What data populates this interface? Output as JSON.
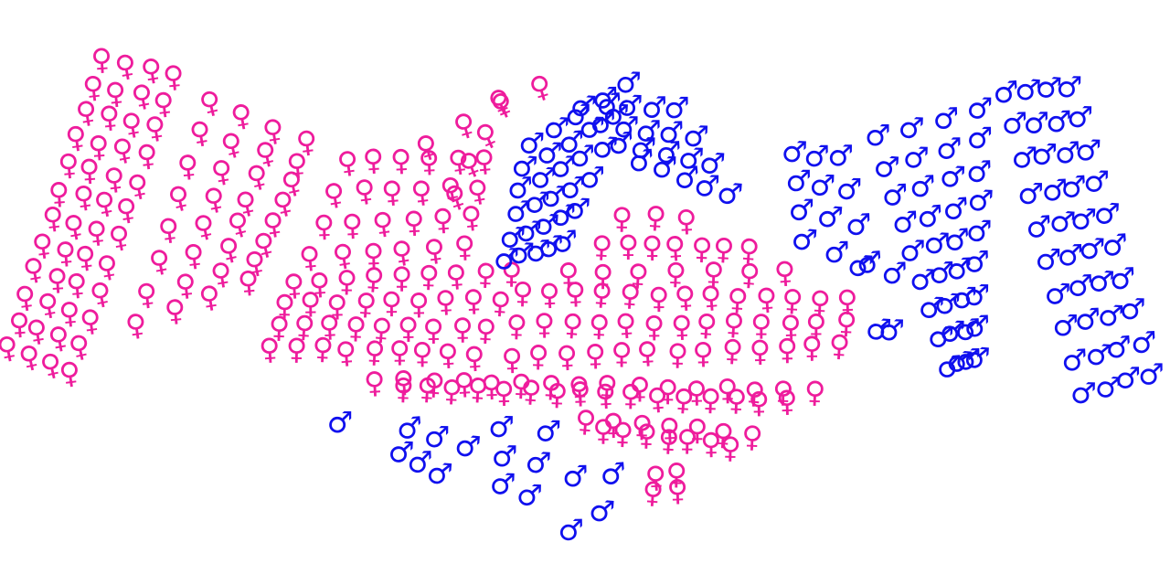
{
  "artwork": {
    "description_icon": "gender-symbols-handshake-illustration",
    "colors": {
      "female": "#ee1c9c",
      "male": "#1010ee",
      "background": "#ffffff"
    },
    "symbols": {
      "female": "♀",
      "male": "♂"
    }
  }
}
